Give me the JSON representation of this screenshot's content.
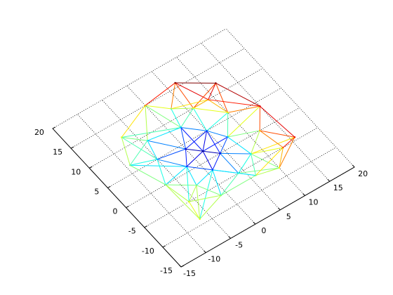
{
  "chart_data": {
    "type": "mesh",
    "x": [
      6.7,
      12,
      15.8,
      15,
      10,
      -6.7,
      -9.3,
      -7,
      0,
      -3,
      2,
      4,
      0,
      5,
      -2,
      1,
      7,
      2,
      -5,
      4,
      8,
      10,
      6,
      -4,
      -7,
      -1,
      12,
      9,
      3,
      -6,
      6,
      13
    ],
    "y": [
      15.9,
      12,
      -4.4,
      4,
      -8,
      -8.9,
      6.6,
      12,
      15,
      -3,
      2,
      0,
      4,
      5,
      1,
      -2,
      2,
      8,
      5,
      -5,
      -3,
      6,
      10,
      9,
      0,
      -7,
      0,
      10,
      12,
      -5,
      -7,
      -5
    ],
    "z": [
      10,
      10,
      9,
      9,
      6,
      6,
      5,
      6,
      7,
      5,
      0,
      1,
      1,
      2,
      2,
      2,
      3,
      3,
      3,
      4,
      4,
      6,
      6,
      4,
      5,
      5,
      7,
      8,
      5,
      6,
      5,
      8
    ],
    "xlim": [
      -15,
      20
    ],
    "ylim": [
      -15,
      20
    ],
    "xticks": [
      -15,
      -10,
      -5,
      0,
      5,
      10,
      15,
      20
    ],
    "yticks": [
      -15,
      -10,
      -5,
      0,
      5,
      10,
      15,
      20
    ],
    "grid": true,
    "colormap": "jet"
  }
}
